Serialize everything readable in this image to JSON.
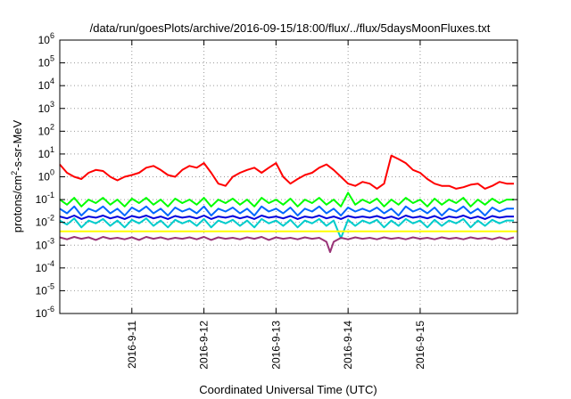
{
  "chart_data": {
    "type": "line",
    "title": "/data/run/goesPlots/archive/2016-09-15/18:00/flux/../flux/5daysMoonFluxes.txt",
    "xlabel": "Coordinated Universal Time (UTC)",
    "ylabel": {
      "pre": "protons/cm",
      "sup": "2",
      "post": "-s-sr-MeV"
    },
    "yscale": "log",
    "ylim": [
      1e-06,
      1000000.0
    ],
    "xlim": [
      0,
      6.35
    ],
    "grid": true,
    "y_ticks": [
      {
        "exp": -6
      },
      {
        "exp": -5
      },
      {
        "exp": -4
      },
      {
        "exp": -3
      },
      {
        "exp": -2
      },
      {
        "exp": -1
      },
      {
        "exp": 0
      },
      {
        "exp": 1
      },
      {
        "exp": 2
      },
      {
        "exp": 3
      },
      {
        "exp": 4
      },
      {
        "exp": 5
      },
      {
        "exp": 6
      }
    ],
    "y_tick_base": "10",
    "x_ticks": [
      {
        "x": 1,
        "label": "2016-9-11"
      },
      {
        "x": 2,
        "label": "2016-9-12"
      },
      {
        "x": 3,
        "label": "2016-9-13"
      },
      {
        "x": 4,
        "label": "2016-9-14"
      },
      {
        "x": 5,
        "label": "2016-9-15"
      }
    ],
    "series": [
      {
        "color": "#ff0000",
        "x": [
          0,
          0.1,
          0.2,
          0.3,
          0.4,
          0.5,
          0.6,
          0.7,
          0.8,
          0.9,
          1.0,
          1.1,
          1.2,
          1.3,
          1.4,
          1.5,
          1.6,
          1.7,
          1.8,
          1.9,
          2.0,
          2.1,
          2.2,
          2.3,
          2.4,
          2.5,
          2.6,
          2.7,
          2.8,
          2.9,
          3.0,
          3.1,
          3.2,
          3.3,
          3.4,
          3.5,
          3.6,
          3.7,
          3.8,
          3.9,
          4.0,
          4.1,
          4.2,
          4.3,
          4.4,
          4.5,
          4.6,
          4.7,
          4.8,
          4.9,
          5.0,
          5.1,
          5.2,
          5.3,
          5.4,
          5.5,
          5.6,
          5.7,
          5.8,
          5.9,
          6.0,
          6.1,
          6.2,
          6.3
        ],
        "y": [
          3.5,
          1.5,
          1.0,
          0.8,
          1.5,
          2.0,
          1.8,
          1.0,
          0.7,
          1.0,
          1.2,
          1.5,
          2.5,
          3.0,
          2.0,
          1.2,
          1.0,
          2.0,
          3.0,
          2.5,
          4.0,
          1.5,
          0.5,
          0.4,
          1.0,
          1.5,
          2.0,
          2.5,
          1.5,
          2.5,
          4.0,
          1.0,
          0.5,
          0.8,
          1.2,
          1.5,
          2.5,
          3.5,
          2.0,
          1.0,
          0.5,
          0.4,
          0.6,
          0.5,
          0.3,
          0.5,
          8.5,
          6.0,
          4.0,
          2.0,
          1.5,
          0.8,
          0.5,
          0.4,
          0.4,
          0.3,
          0.35,
          0.45,
          0.5,
          0.3,
          0.4,
          0.6,
          0.5,
          0.5
        ]
      },
      {
        "color": "#00ff00",
        "x": [
          0,
          0.1,
          0.2,
          0.3,
          0.4,
          0.5,
          0.6,
          0.7,
          0.8,
          0.9,
          1.0,
          1.1,
          1.2,
          1.3,
          1.4,
          1.5,
          1.6,
          1.7,
          1.8,
          1.9,
          2.0,
          2.1,
          2.2,
          2.3,
          2.4,
          2.5,
          2.6,
          2.7,
          2.8,
          2.9,
          3.0,
          3.1,
          3.2,
          3.3,
          3.4,
          3.5,
          3.6,
          3.7,
          3.8,
          3.9,
          4.0,
          4.1,
          4.2,
          4.3,
          4.4,
          4.5,
          4.6,
          4.7,
          4.8,
          4.9,
          5.0,
          5.1,
          5.2,
          5.3,
          5.4,
          5.5,
          5.6,
          5.7,
          5.8,
          5.9,
          6.0,
          6.1,
          6.2,
          6.3
        ],
        "y": [
          0.1,
          0.06,
          0.12,
          0.05,
          0.1,
          0.07,
          0.12,
          0.06,
          0.1,
          0.05,
          0.11,
          0.07,
          0.12,
          0.06,
          0.1,
          0.05,
          0.11,
          0.07,
          0.1,
          0.06,
          0.12,
          0.05,
          0.1,
          0.07,
          0.11,
          0.06,
          0.1,
          0.05,
          0.12,
          0.07,
          0.1,
          0.06,
          0.11,
          0.05,
          0.1,
          0.07,
          0.12,
          0.06,
          0.1,
          0.05,
          0.2,
          0.06,
          0.1,
          0.07,
          0.11,
          0.05,
          0.1,
          0.06,
          0.12,
          0.07,
          0.1,
          0.05,
          0.11,
          0.06,
          0.1,
          0.07,
          0.12,
          0.05,
          0.1,
          0.06,
          0.11,
          0.07,
          0.1,
          0.1
        ]
      },
      {
        "color": "#00cccc",
        "x": [
          0,
          0.1,
          0.2,
          0.3,
          0.4,
          0.5,
          0.6,
          0.7,
          0.8,
          0.9,
          1.0,
          1.1,
          1.2,
          1.3,
          1.4,
          1.5,
          1.6,
          1.7,
          1.8,
          1.9,
          2.0,
          2.1,
          2.2,
          2.3,
          2.4,
          2.5,
          2.6,
          2.7,
          2.8,
          2.9,
          3.0,
          3.1,
          3.2,
          3.3,
          3.4,
          3.5,
          3.6,
          3.7,
          3.8,
          3.9,
          4.0,
          4.1,
          4.2,
          4.3,
          4.4,
          4.5,
          4.6,
          4.7,
          4.8,
          4.9,
          5.0,
          5.1,
          5.2,
          5.3,
          5.4,
          5.5,
          5.6,
          5.7,
          5.8,
          5.9,
          6.0,
          6.1,
          6.2,
          6.3
        ],
        "y": [
          0.012,
          0.008,
          0.015,
          0.006,
          0.012,
          0.009,
          0.014,
          0.007,
          0.012,
          0.006,
          0.013,
          0.009,
          0.015,
          0.007,
          0.012,
          0.006,
          0.013,
          0.009,
          0.012,
          0.007,
          0.014,
          0.006,
          0.012,
          0.009,
          0.013,
          0.007,
          0.012,
          0.006,
          0.014,
          0.009,
          0.012,
          0.007,
          0.013,
          0.006,
          0.012,
          0.009,
          0.014,
          0.007,
          0.012,
          0.002,
          0.013,
          0.007,
          0.012,
          0.009,
          0.013,
          0.006,
          0.012,
          0.007,
          0.014,
          0.009,
          0.012,
          0.006,
          0.013,
          0.007,
          0.012,
          0.009,
          0.014,
          0.006,
          0.012,
          0.007,
          0.013,
          0.009,
          0.012,
          0.012
        ]
      },
      {
        "color": "#0066ff",
        "x": [
          0,
          0.1,
          0.2,
          0.3,
          0.4,
          0.5,
          0.6,
          0.7,
          0.8,
          0.9,
          1.0,
          1.1,
          1.2,
          1.3,
          1.4,
          1.5,
          1.6,
          1.7,
          1.8,
          1.9,
          2.0,
          2.1,
          2.2,
          2.3,
          2.4,
          2.5,
          2.6,
          2.7,
          2.8,
          2.9,
          3.0,
          3.1,
          3.2,
          3.3,
          3.4,
          3.5,
          3.6,
          3.7,
          3.8,
          3.9,
          4.0,
          4.1,
          4.2,
          4.3,
          4.4,
          4.5,
          4.6,
          4.7,
          4.8,
          4.9,
          5.0,
          5.1,
          5.2,
          5.3,
          5.4,
          5.5,
          5.6,
          5.7,
          5.8,
          5.9,
          6.0,
          6.1,
          6.2,
          6.3
        ],
        "y": [
          0.04,
          0.025,
          0.05,
          0.02,
          0.04,
          0.03,
          0.05,
          0.025,
          0.04,
          0.02,
          0.045,
          0.03,
          0.05,
          0.025,
          0.04,
          0.02,
          0.045,
          0.03,
          0.04,
          0.025,
          0.05,
          0.02,
          0.04,
          0.03,
          0.045,
          0.025,
          0.04,
          0.02,
          0.05,
          0.03,
          0.04,
          0.025,
          0.045,
          0.02,
          0.04,
          0.03,
          0.05,
          0.025,
          0.04,
          0.02,
          0.045,
          0.03,
          0.04,
          0.03,
          0.045,
          0.025,
          0.04,
          0.02,
          0.05,
          0.03,
          0.04,
          0.025,
          0.045,
          0.02,
          0.04,
          0.03,
          0.05,
          0.025,
          0.04,
          0.02,
          0.045,
          0.03,
          0.04,
          0.04
        ]
      },
      {
        "color": "#0000dd",
        "x": [
          0,
          0.1,
          0.2,
          0.3,
          0.4,
          0.5,
          0.6,
          0.7,
          0.8,
          0.9,
          1.0,
          1.1,
          1.2,
          1.3,
          1.4,
          1.5,
          1.6,
          1.7,
          1.8,
          1.9,
          2.0,
          2.1,
          2.2,
          2.3,
          2.4,
          2.5,
          2.6,
          2.7,
          2.8,
          2.9,
          3.0,
          3.1,
          3.2,
          3.3,
          3.4,
          3.5,
          3.6,
          3.7,
          3.8,
          3.9,
          4.0,
          4.1,
          4.2,
          4.3,
          4.4,
          4.5,
          4.6,
          4.7,
          4.8,
          4.9,
          5.0,
          5.1,
          5.2,
          5.3,
          5.4,
          5.5,
          5.6,
          5.7,
          5.8,
          5.9,
          6.0,
          6.1,
          6.2,
          6.3
        ],
        "y": [
          0.018,
          0.015,
          0.02,
          0.014,
          0.018,
          0.016,
          0.02,
          0.015,
          0.018,
          0.014,
          0.019,
          0.016,
          0.02,
          0.015,
          0.018,
          0.014,
          0.019,
          0.016,
          0.018,
          0.015,
          0.02,
          0.014,
          0.018,
          0.016,
          0.019,
          0.015,
          0.018,
          0.014,
          0.02,
          0.016,
          0.018,
          0.015,
          0.019,
          0.014,
          0.018,
          0.016,
          0.02,
          0.015,
          0.018,
          0.014,
          0.019,
          0.016,
          0.018,
          0.016,
          0.019,
          0.015,
          0.018,
          0.014,
          0.02,
          0.016,
          0.018,
          0.015,
          0.019,
          0.014,
          0.018,
          0.016,
          0.02,
          0.015,
          0.018,
          0.014,
          0.019,
          0.016,
          0.018,
          0.018
        ]
      },
      {
        "color": "#ffff00",
        "x": [
          0,
          6.35
        ],
        "y": [
          0.004,
          0.004
        ]
      },
      {
        "color": "#993377",
        "x": [
          0,
          0.1,
          0.2,
          0.3,
          0.4,
          0.5,
          0.6,
          0.7,
          0.8,
          0.9,
          1.0,
          1.1,
          1.2,
          1.3,
          1.4,
          1.5,
          1.6,
          1.7,
          1.8,
          1.9,
          2.0,
          2.1,
          2.2,
          2.3,
          2.4,
          2.5,
          2.6,
          2.7,
          2.8,
          2.9,
          3.0,
          3.1,
          3.2,
          3.3,
          3.4,
          3.5,
          3.6,
          3.7,
          3.75,
          3.8,
          3.9,
          4.0,
          4.1,
          4.2,
          4.3,
          4.4,
          4.5,
          4.6,
          4.7,
          4.8,
          4.9,
          5.0,
          5.1,
          5.2,
          5.3,
          5.4,
          5.5,
          5.6,
          5.7,
          5.8,
          5.9,
          6.0,
          6.1,
          6.2,
          6.3
        ],
        "y": [
          0.0022,
          0.0018,
          0.0023,
          0.0019,
          0.0022,
          0.0017,
          0.0023,
          0.0019,
          0.0021,
          0.0018,
          0.0022,
          0.0017,
          0.0023,
          0.0019,
          0.0022,
          0.0018,
          0.0021,
          0.0019,
          0.0022,
          0.0018,
          0.0023,
          0.0017,
          0.0022,
          0.0019,
          0.0021,
          0.0018,
          0.0022,
          0.0019,
          0.0023,
          0.0017,
          0.0022,
          0.0019,
          0.0021,
          0.0018,
          0.0022,
          0.0019,
          0.0021,
          0.0014,
          0.0005,
          0.0014,
          0.0021,
          0.0018,
          0.0022,
          0.0019,
          0.0021,
          0.0018,
          0.0022,
          0.0019,
          0.0021,
          0.0018,
          0.0022,
          0.0019,
          0.0021,
          0.0018,
          0.0022,
          0.0019,
          0.0021,
          0.0018,
          0.0022,
          0.0019,
          0.0021,
          0.0018,
          0.0022,
          0.0018,
          0.0022
        ]
      }
    ]
  }
}
